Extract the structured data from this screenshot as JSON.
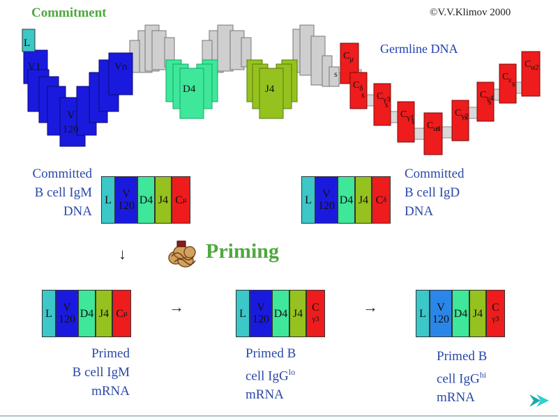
{
  "header": {
    "title": "Commitment",
    "copyright": "©V.V.Klimov 2000"
  },
  "germline": {
    "label": "Germline DNA",
    "segments": {
      "L": "L",
      "V1": "V1",
      "Vn": "Vn",
      "V": "V",
      "V_num": "120",
      "D4": "D4",
      "J4": "J4",
      "s": "s"
    },
    "constant_genes": [
      {
        "name": "C",
        "sub": "μ"
      },
      {
        "name": "C",
        "sub": "δ"
      },
      {
        "name": "C",
        "sub": "γ3"
      },
      {
        "name": "C",
        "sub": "γ1"
      },
      {
        "name": "C",
        "sub": "α1"
      },
      {
        "name": "C",
        "sub": "γ2"
      },
      {
        "name": "C",
        "sub": "γ4"
      },
      {
        "name": "C",
        "sub": "ε"
      },
      {
        "name": "C",
        "sub": "α2"
      }
    ]
  },
  "committed": {
    "igm": {
      "line1": "Committed",
      "line2": "B cell IgM",
      "line3": "DNA",
      "const": {
        "name": "C",
        "sub": "μ"
      }
    },
    "igd": {
      "line1": "Committed",
      "line2": "B cell IgD",
      "line3": "DNA",
      "const": {
        "name": "C",
        "sub": "δ"
      }
    }
  },
  "priming": {
    "label": "Priming"
  },
  "arrows": {
    "down": "↓",
    "right": "→"
  },
  "primed": {
    "igm": {
      "line1": "Primed",
      "line2": "B cell IgM",
      "line3": "mRNA",
      "const": {
        "name": "C",
        "sub": "μ"
      }
    },
    "igg_lo": {
      "line1": "Primed B",
      "line2": "cell IgG",
      "sup": "lo",
      "line3": "mRNA",
      "const": {
        "name": "C",
        "sub": "γ3"
      }
    },
    "igg_hi": {
      "line1": "Primed B",
      "line2": "cell IgG",
      "sup": "hi",
      "line3": "mRNA",
      "const": {
        "name": "C",
        "sub": "γ3"
      }
    }
  },
  "colors": {
    "leader": "#3cc7c9",
    "variable": "#1a1adf",
    "variable_hi": "#2a86e8",
    "diversity": "#3ee79a",
    "joining": "#95c21e",
    "constant": "#ee1c1c",
    "inactive": "#cfcfcf",
    "label": "#2a48a8",
    "title": "#4fa83f"
  }
}
